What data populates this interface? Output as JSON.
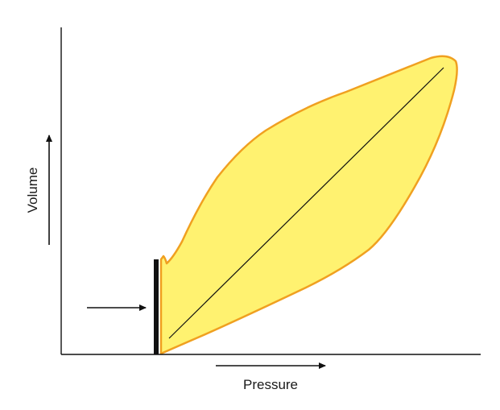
{
  "axes": {
    "x_label": "Pressure",
    "y_label": "Volume"
  },
  "colors": {
    "loop_fill": "#fff270",
    "loop_edge": "#f0a020",
    "line": "#111111",
    "background": "#ffffff"
  }
}
